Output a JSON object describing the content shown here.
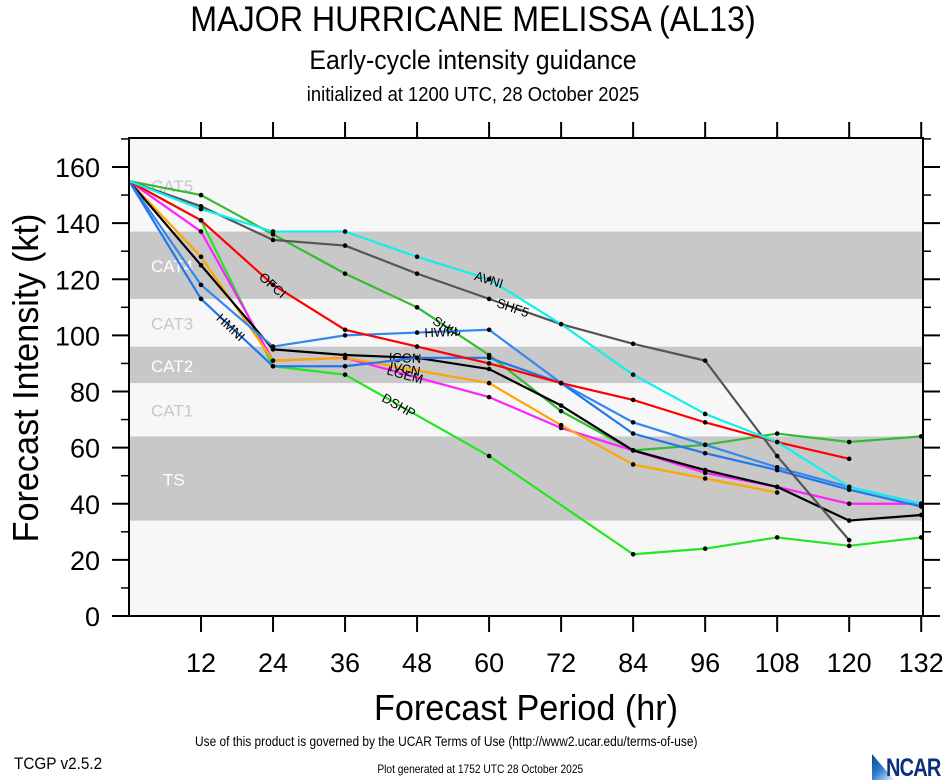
{
  "titles": {
    "main": "MAJOR HURRICANE MELISSA (AL13)",
    "subtitle": "Early-cycle intensity guidance",
    "init": "initialized at 1200 UTC, 28 October 2025"
  },
  "footer": {
    "terms": "Use of this product is governed by the UCAR Terms of Use (http://www2.ucar.edu/terms-of-use)",
    "version": "TCGP v2.5.2",
    "generated": "Plot generated at 1752 UTC   28 October 2025",
    "logo": "NCAR"
  },
  "chart_data": {
    "type": "line",
    "title": "MAJOR HURRICANE MELISSA (AL13)",
    "xlabel": "Forecast Period (hr)",
    "ylabel": "Forecast Intensity (kt)",
    "xlim": [
      0,
      132
    ],
    "ylim": [
      0,
      170
    ],
    "xticks": [
      12,
      24,
      36,
      48,
      60,
      72,
      84,
      96,
      108,
      120,
      132
    ],
    "yticks": [
      0,
      20,
      40,
      60,
      80,
      100,
      120,
      140,
      160
    ],
    "bands": [
      {
        "label": "TS",
        "from": 34,
        "to": 64,
        "shade": "dark"
      },
      {
        "label": "CAT1",
        "from": 64,
        "to": 83,
        "shade": "light"
      },
      {
        "label": "CAT2",
        "from": 83,
        "to": 96,
        "shade": "dark"
      },
      {
        "label": "CAT3",
        "from": 96,
        "to": 113,
        "shade": "light"
      },
      {
        "label": "CAT4",
        "from": 113,
        "to": 137,
        "shade": "dark"
      },
      {
        "label": "CAT5",
        "from": 137,
        "to": 170,
        "shade": "light"
      }
    ],
    "colors": {
      "band_dark": "#c8c8c8",
      "band_light": "#f7f7f7",
      "band_label_dark": "#ffffff",
      "band_label_light": "#c8c8c8"
    },
    "series": [
      {
        "name": "DSHP",
        "color": "#22e622",
        "label_hour": 45,
        "points": [
          [
            0,
            155
          ],
          [
            12,
            141
          ],
          [
            24,
            89
          ],
          [
            36,
            86
          ],
          [
            60,
            57
          ],
          [
            84,
            22
          ],
          [
            96,
            24
          ],
          [
            108,
            28
          ],
          [
            120,
            25
          ],
          [
            132,
            28
          ]
        ]
      },
      {
        "name": "SHIP",
        "color": "#33bb33",
        "label_hour": 53,
        "points": [
          [
            0,
            155
          ],
          [
            12,
            150
          ],
          [
            24,
            136
          ],
          [
            36,
            122
          ],
          [
            48,
            110
          ],
          [
            60,
            93
          ],
          [
            72,
            73
          ],
          [
            84,
            59
          ],
          [
            96,
            61
          ],
          [
            108,
            65
          ],
          [
            120,
            62
          ],
          [
            132,
            64
          ]
        ]
      },
      {
        "name": "LGEM",
        "color": "#ff22ff",
        "label_hour": 46,
        "points": [
          [
            0,
            155
          ],
          [
            12,
            137
          ],
          [
            24,
            91
          ],
          [
            36,
            92
          ],
          [
            60,
            78
          ],
          [
            72,
            67
          ],
          [
            84,
            59
          ],
          [
            96,
            51
          ],
          [
            108,
            46
          ],
          [
            120,
            40
          ],
          [
            132,
            40
          ]
        ]
      },
      {
        "name": "IVCN",
        "color": "#ffa500",
        "label_hour": 46,
        "points": [
          [
            0,
            155
          ],
          [
            12,
            128
          ],
          [
            24,
            91
          ],
          [
            36,
            92
          ],
          [
            60,
            83
          ],
          [
            72,
            68
          ],
          [
            84,
            54
          ],
          [
            96,
            49
          ],
          [
            108,
            44
          ]
        ]
      },
      {
        "name": "ICON",
        "color": "#000000",
        "label_hour": 46,
        "points": [
          [
            0,
            155
          ],
          [
            12,
            125
          ],
          [
            24,
            95
          ],
          [
            36,
            93
          ],
          [
            48,
            92
          ],
          [
            60,
            88
          ],
          [
            72,
            75
          ],
          [
            84,
            59
          ],
          [
            96,
            52
          ],
          [
            108,
            46
          ],
          [
            120,
            34
          ],
          [
            132,
            36
          ]
        ]
      },
      {
        "name": "HWFI",
        "color": "#3388ee",
        "label_hour": 52,
        "points": [
          [
            0,
            155
          ],
          [
            12,
            118
          ],
          [
            24,
            96
          ],
          [
            36,
            100
          ],
          [
            48,
            101
          ],
          [
            60,
            102
          ],
          [
            72,
            83
          ],
          [
            84,
            69
          ],
          [
            96,
            61
          ],
          [
            108,
            53
          ],
          [
            120,
            46
          ],
          [
            132,
            40
          ]
        ]
      },
      {
        "name": "HMNI",
        "color": "#2277ee",
        "label_hour": 17,
        "points": [
          [
            0,
            155
          ],
          [
            12,
            113
          ],
          [
            24,
            89
          ],
          [
            36,
            89
          ],
          [
            48,
            92
          ],
          [
            60,
            92
          ],
          [
            72,
            83
          ],
          [
            84,
            65
          ],
          [
            96,
            58
          ],
          [
            108,
            52
          ],
          [
            120,
            45
          ],
          [
            132,
            39
          ]
        ]
      },
      {
        "name": "OFCI",
        "color": "#ff0000",
        "label_hour": 24,
        "points": [
          [
            0,
            155
          ],
          [
            12,
            141
          ],
          [
            24,
            118
          ],
          [
            36,
            102
          ],
          [
            48,
            96
          ],
          [
            60,
            90
          ],
          [
            72,
            83
          ],
          [
            84,
            77
          ],
          [
            96,
            69
          ],
          [
            108,
            62
          ],
          [
            120,
            56
          ]
        ]
      },
      {
        "name": "SHF5",
        "color": "#555555",
        "label_hour": 64,
        "points": [
          [
            0,
            155
          ],
          [
            12,
            146
          ],
          [
            24,
            134
          ],
          [
            36,
            132
          ],
          [
            48,
            122
          ],
          [
            60,
            113
          ],
          [
            72,
            104
          ],
          [
            84,
            97
          ],
          [
            96,
            91
          ],
          [
            108,
            57
          ],
          [
            120,
            27
          ]
        ]
      },
      {
        "name": "AVNI",
        "color": "#11eeee",
        "label_hour": 60,
        "points": [
          [
            0,
            155
          ],
          [
            12,
            145
          ],
          [
            24,
            137
          ],
          [
            36,
            137
          ],
          [
            48,
            128
          ],
          [
            60,
            120
          ],
          [
            72,
            104
          ],
          [
            84,
            86
          ],
          [
            96,
            72
          ],
          [
            108,
            62
          ],
          [
            120,
            46
          ],
          [
            132,
            40
          ]
        ]
      }
    ]
  }
}
